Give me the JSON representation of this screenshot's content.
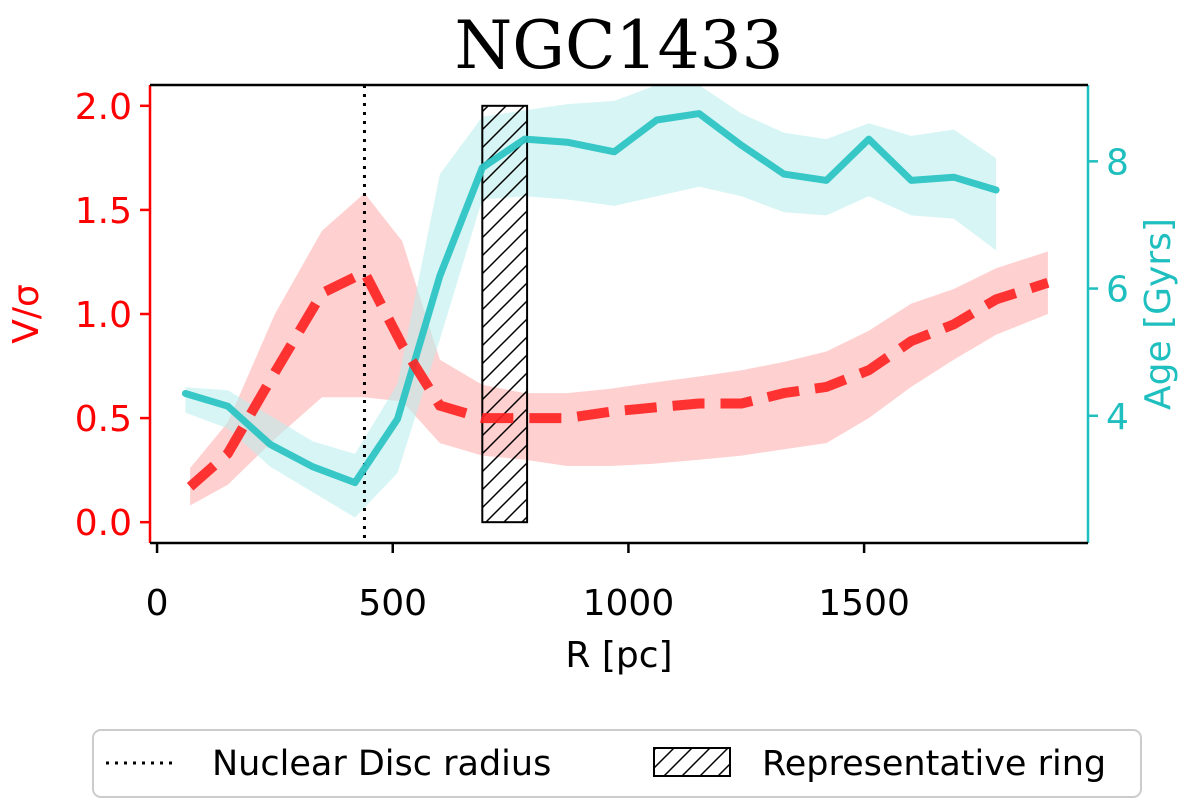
{
  "colors": {
    "left_series": "#ff2020",
    "left_band": "#ffb0b0",
    "right_series": "#2ec4c4",
    "right_band": "#b8ecec",
    "left_axis": "#ff0000",
    "right_axis": "#1fbfbf",
    "text": "#000000"
  },
  "chart_data": {
    "type": "line",
    "title": "NGC1433",
    "xlabel": "R [pc]",
    "ylabel_left": "V/σ",
    "ylabel_right": "Age [Gyrs]",
    "xlim": [
      -15,
      1975
    ],
    "ylim_left": [
      -0.1,
      2.1
    ],
    "ylim_right": [
      2.0,
      9.2
    ],
    "x_ticks": [
      0,
      500,
      1000,
      1500
    ],
    "x_tick_labels": [
      "0",
      "500",
      "1000",
      "1500"
    ],
    "y_left_ticks": [
      0.0,
      0.5,
      1.0,
      1.5,
      2.0
    ],
    "y_left_tick_labels": [
      "0.0",
      "0.5",
      "1.0",
      "1.5",
      "2.0"
    ],
    "y_right_ticks": [
      4,
      6,
      8
    ],
    "y_right_tick_labels": [
      "4",
      "6",
      "8"
    ],
    "series": [
      {
        "name": "V/σ",
        "axis": "left",
        "style": "dashed",
        "x": [
          70,
          150,
          250,
          350,
          440,
          520,
          600,
          690,
          780,
          870,
          960,
          1050,
          1150,
          1240,
          1330,
          1420,
          1510,
          1600,
          1690,
          1780,
          1890
        ],
        "y": [
          0.17,
          0.33,
          0.72,
          1.1,
          1.2,
          0.85,
          0.56,
          0.5,
          0.5,
          0.5,
          0.53,
          0.55,
          0.57,
          0.57,
          0.62,
          0.65,
          0.73,
          0.87,
          0.95,
          1.07,
          1.15
        ],
        "band_lower": [
          0.08,
          0.18,
          0.4,
          0.6,
          0.6,
          0.58,
          0.38,
          0.32,
          0.3,
          0.27,
          0.27,
          0.28,
          0.3,
          0.32,
          0.35,
          0.38,
          0.5,
          0.65,
          0.78,
          0.9,
          1.0
        ],
        "band_upper": [
          0.26,
          0.48,
          1.0,
          1.4,
          1.58,
          1.35,
          0.78,
          0.66,
          0.62,
          0.62,
          0.64,
          0.67,
          0.7,
          0.73,
          0.77,
          0.82,
          0.92,
          1.05,
          1.12,
          1.22,
          1.3
        ]
      },
      {
        "name": "Age",
        "axis": "right",
        "style": "solid",
        "x": [
          60,
          150,
          240,
          330,
          420,
          510,
          600,
          690,
          780,
          870,
          970,
          1060,
          1150,
          1240,
          1330,
          1420,
          1510,
          1600,
          1690,
          1780
        ],
        "y": [
          4.35,
          4.15,
          3.55,
          3.2,
          2.95,
          3.95,
          6.2,
          7.9,
          8.35,
          8.3,
          8.15,
          8.65,
          8.75,
          8.25,
          7.8,
          7.7,
          8.35,
          7.7,
          7.75,
          7.55
        ],
        "band_lower": [
          4.05,
          3.8,
          3.2,
          2.8,
          2.4,
          3.1,
          5.2,
          7.4,
          7.45,
          7.4,
          7.3,
          7.45,
          7.6,
          7.45,
          7.2,
          7.15,
          7.45,
          7.15,
          7.1,
          6.6
        ],
        "band_upper": [
          4.45,
          4.4,
          4.0,
          3.6,
          3.4,
          4.5,
          7.8,
          8.7,
          8.8,
          8.9,
          8.95,
          9.2,
          9.2,
          8.75,
          8.45,
          8.35,
          8.6,
          8.4,
          8.5,
          8.05
        ]
      }
    ],
    "vline": {
      "x": 440,
      "label": "Nuclear Disc radius"
    },
    "ring": {
      "x_start": 690,
      "x_end": 785,
      "y_bottom": 0.0,
      "y_top": 2.0,
      "label": "Representative ring"
    },
    "legend": {
      "placement": "bottom-center",
      "entries": [
        "Nuclear Disc radius",
        "Representative ring"
      ]
    }
  }
}
